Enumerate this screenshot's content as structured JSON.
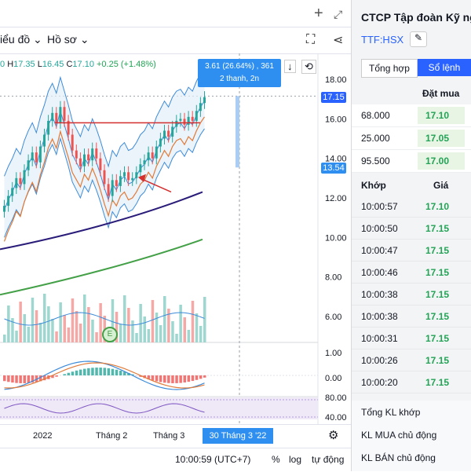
{
  "toolbar": {
    "chart_type_label": "iểu đồ",
    "profile_label": "Hồ sơ",
    "add_icon": "plus-icon",
    "expand_icon": "expand-icon",
    "fullscreen_icon": "fullscreen-icon",
    "share_icon": "share-icon"
  },
  "ohlc": {
    "open": "0",
    "high_label": "H",
    "high": "17.35",
    "low_label": "L",
    "low": "16.45",
    "close_label": "C",
    "close": "17.10",
    "change": "+0.25 (+1.48%)"
  },
  "measure": {
    "line1": "3.61 (26.64%) , 361",
    "line2": "2 thanh, 2n"
  },
  "price_axis": {
    "ticks": [
      "18.00",
      "16.00",
      "14.00",
      "12.00",
      "10.00",
      "8.00",
      "6.00",
      "1.00",
      "0.00",
      "80.00",
      "40.00"
    ],
    "tag_current": "17.15",
    "tag_base": "13.54"
  },
  "time_axis": {
    "labels": [
      "2022",
      "Tháng 2",
      "Tháng 3"
    ],
    "cursor_date": "30 Tháng 3 '22"
  },
  "status": {
    "time": "10:00:59 (UTC+7)",
    "percent": "%",
    "log": "log",
    "auto": "tự động"
  },
  "event_badge": "E",
  "right_panel": {
    "company": "CTCP Tập đoàn Kỹ ng",
    "ticker": "TTF:HSX",
    "tabs": [
      "Tổng hợp",
      "Sổ lệnh"
    ],
    "active_tab": "Sổ lệnh",
    "bid_header": "Đặt mua",
    "bids": [
      {
        "volume": "68.000",
        "price": "17.10"
      },
      {
        "volume": "25.000",
        "price": "17.05"
      },
      {
        "volume": "95.500",
        "price": "17.00"
      }
    ],
    "trade_headers": [
      "Khớp",
      "Giá"
    ],
    "trades": [
      {
        "time": "10:00:57",
        "price": "17.10"
      },
      {
        "time": "10:00:50",
        "price": "17.15"
      },
      {
        "time": "10:00:47",
        "price": "17.15"
      },
      {
        "time": "10:00:46",
        "price": "17.15"
      },
      {
        "time": "10:00:38",
        "price": "17.15"
      },
      {
        "time": "10:00:38",
        "price": "17.15"
      },
      {
        "time": "10:00:31",
        "price": "17.15"
      },
      {
        "time": "10:00:26",
        "price": "17.15"
      },
      {
        "time": "10:00:20",
        "price": "17.15"
      }
    ],
    "summary": [
      "Tổng KL khớp",
      "KL MUA chủ động",
      "KL BÁN chủ động"
    ]
  },
  "colors": {
    "up": "#26a69a",
    "down": "#ef5350",
    "accent": "#2962ff",
    "ma_slow": "#2a1d7a",
    "ma_long": "#43a047",
    "ma_fast": "#e07b39",
    "bands": "#3d8bd9"
  }
}
